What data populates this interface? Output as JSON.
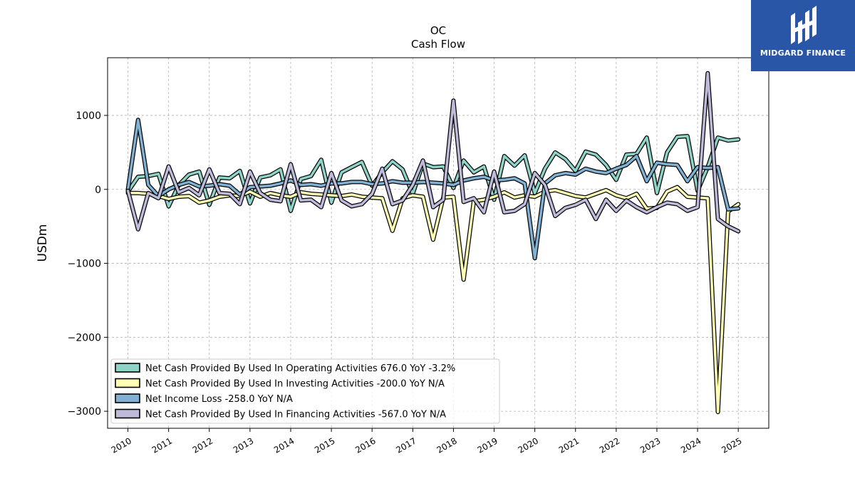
{
  "brand": {
    "name": "MIDGARD FINANCE",
    "color": "#2a56a8",
    "icon": "midgard-logo-icon"
  },
  "chart_data": {
    "type": "line",
    "title": "OC",
    "subtitle": "Cash Flow",
    "ylabel": "USDm",
    "xlabel": "",
    "ylim": [
      -3230,
      1780
    ],
    "xlim": [
      2009.5,
      2025.75
    ],
    "yticks": [
      1000,
      0,
      -1000,
      -2000,
      -3000
    ],
    "ytick_labels": [
      "1000",
      "0",
      "−1000",
      "−2000",
      "−3000"
    ],
    "xticks": [
      2010,
      2011,
      2012,
      2013,
      2014,
      2015,
      2016,
      2017,
      2018,
      2019,
      2020,
      2021,
      2022,
      2023,
      2024,
      2025
    ],
    "xtick_labels": [
      "2010",
      "2011",
      "2012",
      "2013",
      "2014",
      "2015",
      "2016",
      "2017",
      "2018",
      "2019",
      "2020",
      "2021",
      "2022",
      "2023",
      "2024",
      "2025"
    ],
    "grid": true,
    "legend_position": "lower-left",
    "x": [
      2010.0,
      2010.25,
      2010.5,
      2010.75,
      2011.0,
      2011.25,
      2011.5,
      2011.75,
      2012.0,
      2012.25,
      2012.5,
      2012.75,
      2013.0,
      2013.25,
      2013.5,
      2013.75,
      2014.0,
      2014.25,
      2014.5,
      2014.75,
      2015.0,
      2015.25,
      2015.5,
      2015.75,
      2016.0,
      2016.25,
      2016.5,
      2016.75,
      2017.0,
      2017.25,
      2017.5,
      2017.75,
      2018.0,
      2018.25,
      2018.5,
      2018.75,
      2019.0,
      2019.25,
      2019.5,
      2019.75,
      2020.0,
      2020.25,
      2020.5,
      2020.75,
      2021.0,
      2021.25,
      2021.5,
      2021.75,
      2022.0,
      2022.25,
      2022.5,
      2022.75,
      2023.0,
      2023.25,
      2023.5,
      2023.75,
      2024.0,
      2024.25,
      2024.5,
      2024.75,
      2025.0
    ],
    "series": [
      {
        "name": "Net Cash Provided By Used In Operating Activities",
        "legend": "Net Cash Provided By Used In Operating Activities  676.0 YoY -3.2%",
        "color": "#8dd3c7",
        "values": [
          -30,
          170,
          180,
          210,
          -230,
          60,
          200,
          240,
          -210,
          160,
          150,
          250,
          -190,
          160,
          190,
          270,
          -290,
          140,
          180,
          400,
          -180,
          230,
          300,
          370,
          50,
          230,
          380,
          270,
          -60,
          350,
          300,
          310,
          20,
          390,
          230,
          310,
          -140,
          450,
          320,
          460,
          -50,
          280,
          500,
          410,
          250,
          510,
          470,
          330,
          130,
          470,
          480,
          700,
          -50,
          500,
          710,
          720,
          -20,
          300,
          700,
          660,
          676
        ]
      },
      {
        "name": "Net Cash Provided By Used In Investing Activities",
        "legend": "Net Cash Provided By Used In Investing Activities  -200.0 YoY N/A",
        "color": "#ffffb3",
        "values": [
          -50,
          -50,
          -60,
          -90,
          -130,
          -100,
          -90,
          -180,
          -150,
          -100,
          -80,
          -90,
          -30,
          -100,
          -50,
          -80,
          -100,
          -40,
          -60,
          -70,
          -80,
          -90,
          -70,
          -100,
          -110,
          -120,
          -560,
          -120,
          -80,
          -100,
          -680,
          -110,
          -100,
          -1220,
          -160,
          -140,
          -100,
          -40,
          -110,
          -80,
          -100,
          -30,
          -10,
          -50,
          -90,
          -110,
          -60,
          -10,
          -80,
          -120,
          -60,
          -260,
          -250,
          -30,
          30,
          -100,
          -110,
          -120,
          -3010,
          -300,
          -200
        ]
      },
      {
        "name": "Net Income Loss",
        "legend": "Net Income Loss  -258.0 YoY N/A",
        "color": "#80b1d3",
        "values": [
          0,
          940,
          60,
          -90,
          0,
          60,
          100,
          40,
          50,
          70,
          50,
          -70,
          30,
          40,
          50,
          80,
          120,
          60,
          70,
          50,
          80,
          80,
          100,
          100,
          70,
          80,
          110,
          90,
          90,
          100,
          90,
          80,
          60,
          120,
          150,
          170,
          120,
          130,
          150,
          80,
          -930,
          80,
          190,
          220,
          200,
          280,
          240,
          220,
          280,
          330,
          450,
          110,
          360,
          340,
          330,
          110,
          300,
          290,
          300,
          -270,
          -258
        ]
      },
      {
        "name": "Net Cash Provided By Used In Financing Activities",
        "legend": "Net Cash Provided By Used In Financing Activities  -567.0 YoY N/A",
        "color": "#bebada",
        "values": [
          -20,
          -540,
          -50,
          -120,
          310,
          -40,
          20,
          -80,
          270,
          -50,
          -60,
          -200,
          240,
          -50,
          -140,
          -160,
          340,
          -150,
          -140,
          -240,
          220,
          -150,
          -230,
          -200,
          -60,
          280,
          -200,
          -150,
          60,
          390,
          -240,
          -140,
          1200,
          -170,
          -120,
          -310,
          240,
          -310,
          -290,
          -200,
          220,
          60,
          -360,
          -250,
          -210,
          -140,
          -400,
          -140,
          -290,
          -150,
          -240,
          -310,
          -240,
          -180,
          -200,
          -290,
          -240,
          1570,
          -400,
          -500,
          -567
        ]
      }
    ]
  }
}
